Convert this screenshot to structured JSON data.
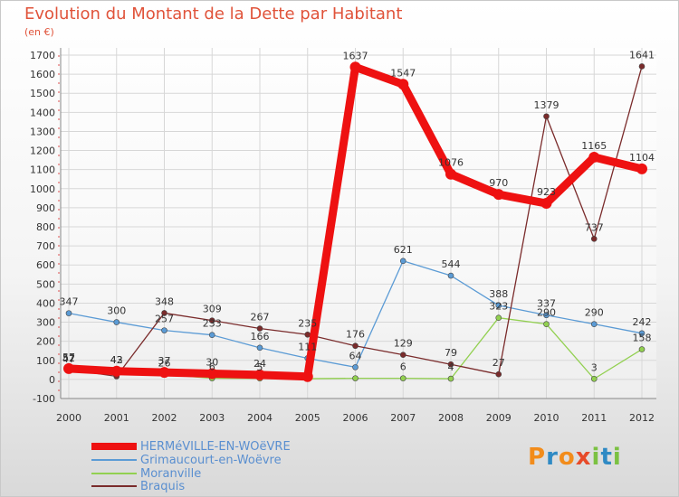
{
  "title": "Evolution du Montant de la Dette par Habitant",
  "unit": "(en €)",
  "logo": {
    "letters": [
      "P",
      "r",
      "o",
      "x",
      "i",
      "t",
      "i"
    ],
    "colors": [
      "#f28c1b",
      "#2f8ac4",
      "#f28c1b",
      "#e74b2a",
      "#7bc142",
      "#2f8ac4",
      "#7bc142"
    ]
  },
  "chart_data": {
    "type": "line",
    "x": [
      "2000",
      "2001",
      "2002",
      "2003",
      "2004",
      "2005",
      "2006",
      "2007",
      "2008",
      "2009",
      "2010",
      "2011",
      "2012"
    ],
    "ylim": [
      -100,
      1700
    ],
    "yticks": [
      "-100",
      "0",
      "100",
      "200",
      "300",
      "400",
      "500",
      "600",
      "700",
      "800",
      "900",
      "1000",
      "1100",
      "1200",
      "1300",
      "1400",
      "1500",
      "1600",
      "1700"
    ],
    "grid": true,
    "legend_position": "bottom-left",
    "series": [
      {
        "name": "HERMéVILLE-EN-WOëVRE",
        "color": "#ee1111",
        "width": 9,
        "values": [
          57,
          43,
          37,
          30,
          24,
          15,
          1637,
          1547,
          1076,
          970,
          923,
          1165,
          1104
        ],
        "labels": [
          "57",
          "43",
          "37",
          "30",
          "24",
          "",
          "1637",
          "1547",
          "1076",
          "970",
          "923",
          "1165",
          "1104"
        ]
      },
      {
        "name": "Grimaucourt-en-Woëvre",
        "color": "#5b9bd5",
        "width": 1.3,
        "values": [
          347,
          300,
          257,
          233,
          166,
          111,
          64,
          621,
          544,
          388,
          337,
          290,
          242
        ],
        "labels": [
          "347",
          "300",
          "257",
          "233",
          "166",
          "111",
          "64",
          "621",
          "544",
          "388",
          "337",
          "290",
          "242"
        ]
      },
      {
        "name": "Moranville",
        "color": "#92d050",
        "width": 1.3,
        "values": [
          47,
          42,
          26,
          6,
          5,
          4,
          6,
          6,
          4,
          323,
          290,
          3,
          158
        ],
        "labels": [
          "47",
          "42",
          "26",
          "6",
          "5",
          "",
          "",
          "6",
          "4",
          "323",
          "290",
          "3",
          "158"
        ]
      },
      {
        "name": "Braquis",
        "color": "#7a2b2b",
        "width": 1.3,
        "values": [
          52,
          16,
          348,
          309,
          267,
          235,
          176,
          129,
          79,
          27,
          1379,
          737,
          1641
        ],
        "labels": [
          "52",
          "",
          "348",
          "309",
          "267",
          "235",
          "176",
          "129",
          "79",
          "27",
          "1379",
          "737",
          "1641"
        ]
      }
    ]
  }
}
